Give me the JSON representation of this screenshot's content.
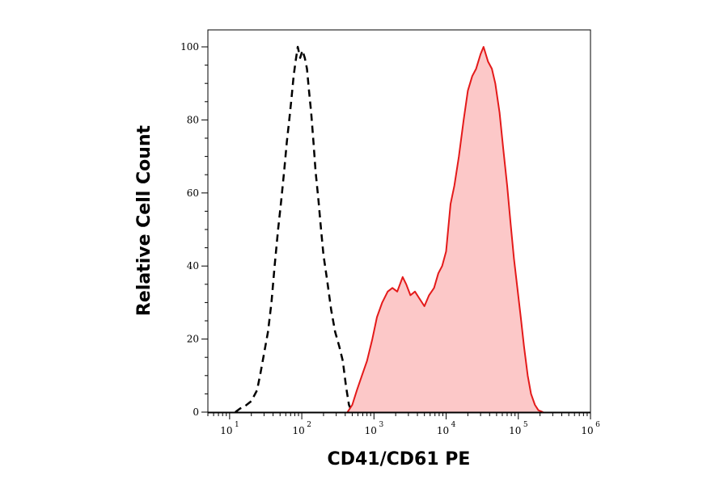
{
  "chart_data": {
    "type": "area",
    "title": "",
    "xlabel": "CD41/CD61 PE",
    "ylabel": "Relative Cell Count",
    "x_scale": "log10",
    "xlim": [
      5,
      1000000
    ],
    "ylim": [
      0,
      104
    ],
    "x_ticks": [
      {
        "base": "10",
        "exp": "1",
        "value": 10
      },
      {
        "base": "10",
        "exp": "2",
        "value": 100
      },
      {
        "base": "10",
        "exp": "3",
        "value": 1000
      },
      {
        "base": "10",
        "exp": "4",
        "value": 10000
      },
      {
        "base": "10",
        "exp": "5",
        "value": 100000
      },
      {
        "base": "10",
        "exp": "6",
        "value": 1000000
      }
    ],
    "y_ticks": [
      {
        "label": "0",
        "value": 0
      },
      {
        "label": "20",
        "value": 20
      },
      {
        "label": "40",
        "value": 40
      },
      {
        "label": "60",
        "value": 60
      },
      {
        "label": "80",
        "value": 80
      },
      {
        "label": "100",
        "value": 100
      }
    ],
    "grid": false,
    "legend": "none",
    "series": [
      {
        "style": "dashed",
        "color": "#000000",
        "fill": "none",
        "points": [
          [
            12,
            0
          ],
          [
            14,
            1
          ],
          [
            16,
            1.5
          ],
          [
            20,
            3
          ],
          [
            24,
            6
          ],
          [
            27,
            11
          ],
          [
            30,
            16
          ],
          [
            34,
            22
          ],
          [
            38,
            30
          ],
          [
            42,
            40
          ],
          [
            47,
            50
          ],
          [
            52,
            58
          ],
          [
            57,
            66
          ],
          [
            62,
            74
          ],
          [
            67,
            80
          ],
          [
            72,
            86
          ],
          [
            77,
            92
          ],
          [
            82,
            96
          ],
          [
            88,
            100
          ],
          [
            95,
            97
          ],
          [
            102,
            99
          ],
          [
            110,
            97
          ],
          [
            118,
            94
          ],
          [
            126,
            88
          ],
          [
            135,
            82
          ],
          [
            145,
            74
          ],
          [
            155,
            66
          ],
          [
            170,
            58
          ],
          [
            185,
            50
          ],
          [
            200,
            43
          ],
          [
            225,
            36
          ],
          [
            255,
            28
          ],
          [
            290,
            22
          ],
          [
            330,
            18
          ],
          [
            370,
            14
          ],
          [
            410,
            7
          ],
          [
            450,
            2
          ],
          [
            500,
            0
          ]
        ]
      },
      {
        "style": "solid",
        "color": "#e41a1a",
        "fill": "#fcc8c8",
        "points": [
          [
            430,
            0
          ],
          [
            500,
            2
          ],
          [
            580,
            6
          ],
          [
            680,
            10
          ],
          [
            800,
            14
          ],
          [
            950,
            20
          ],
          [
            1100,
            26
          ],
          [
            1300,
            30
          ],
          [
            1550,
            33
          ],
          [
            1800,
            34
          ],
          [
            2100,
            33
          ],
          [
            2500,
            37
          ],
          [
            2800,
            35
          ],
          [
            3200,
            32
          ],
          [
            3700,
            33
          ],
          [
            4300,
            31
          ],
          [
            5000,
            29
          ],
          [
            5800,
            32
          ],
          [
            6800,
            34
          ],
          [
            7800,
            38
          ],
          [
            8800,
            40
          ],
          [
            10000,
            44
          ],
          [
            11500,
            57
          ],
          [
            13000,
            62
          ],
          [
            15000,
            70
          ],
          [
            17500,
            80
          ],
          [
            20000,
            88
          ],
          [
            23000,
            92
          ],
          [
            26000,
            94
          ],
          [
            30000,
            98
          ],
          [
            33000,
            100
          ],
          [
            38000,
            96
          ],
          [
            43000,
            94
          ],
          [
            48000,
            90
          ],
          [
            55000,
            82
          ],
          [
            62000,
            72
          ],
          [
            70000,
            62
          ],
          [
            78000,
            52
          ],
          [
            87000,
            42
          ],
          [
            97000,
            34
          ],
          [
            108000,
            26
          ],
          [
            120000,
            18
          ],
          [
            135000,
            10
          ],
          [
            150000,
            5
          ],
          [
            170000,
            2
          ],
          [
            190000,
            0.5
          ],
          [
            220000,
            0
          ]
        ]
      }
    ]
  }
}
